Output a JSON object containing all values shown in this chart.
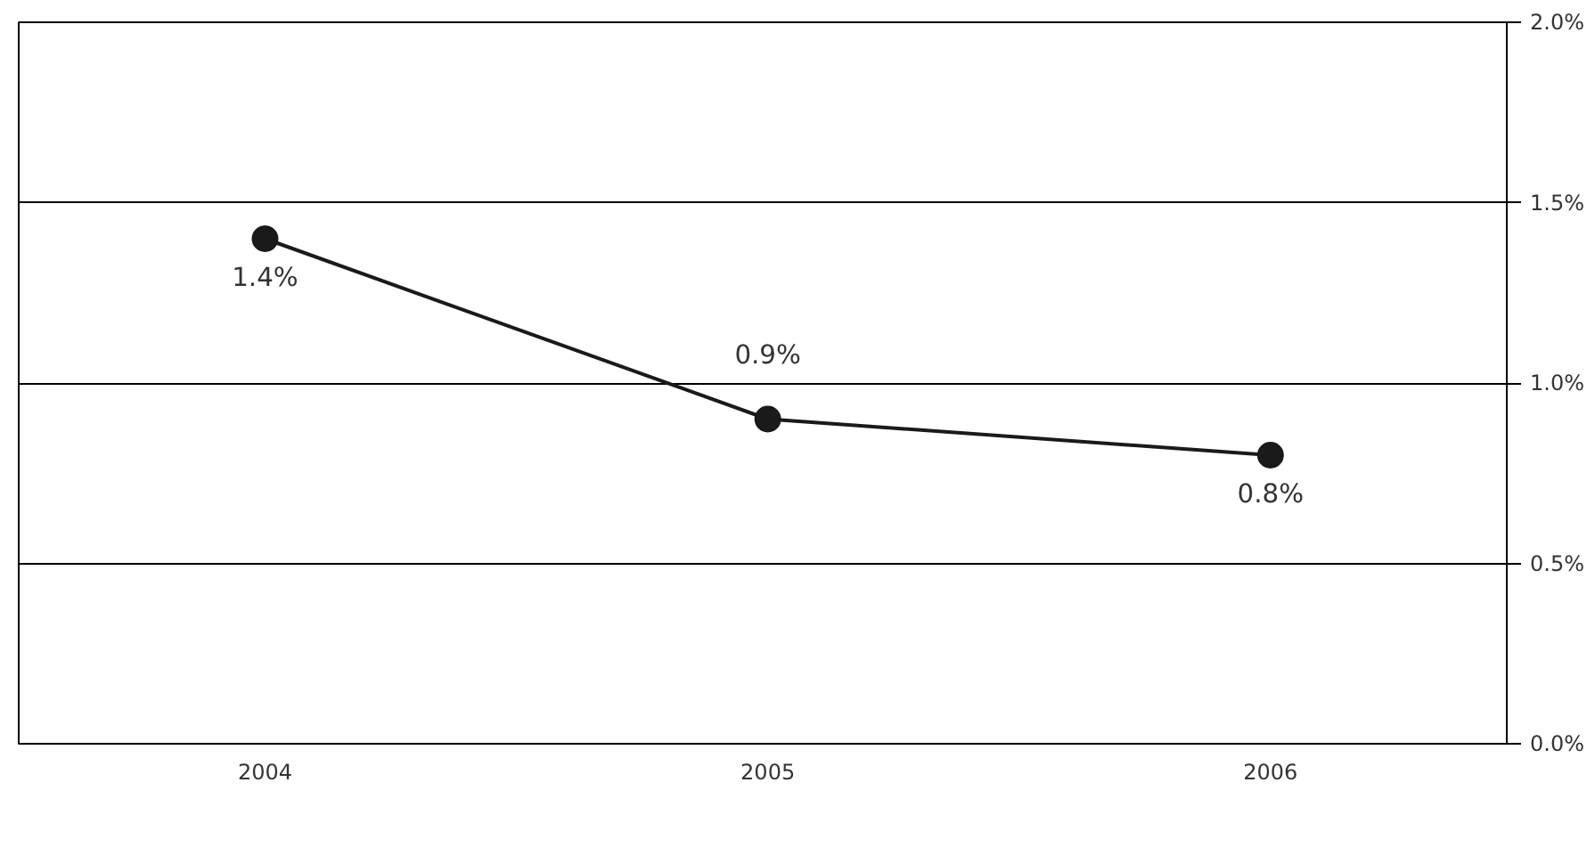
{
  "chart_data": {
    "type": "line",
    "categories": [
      "2004",
      "2005",
      "2006"
    ],
    "series": [
      {
        "color": "#1a1a1a",
        "values": [
          1.4,
          0.9,
          0.8
        ],
        "value_labels": [
          "1.4%",
          "0.9%",
          "0.8%"
        ]
      }
    ],
    "ylim": [
      0,
      2
    ],
    "yticks": [
      {
        "value": 0,
        "label": "0.0%"
      },
      {
        "value": 0.5,
        "label": "0.5%"
      },
      {
        "value": 1,
        "label": "1.0%"
      },
      {
        "value": 1.5,
        "label": "1.5%"
      },
      {
        "value": 2,
        "label": "2.0%"
      }
    ],
    "grid": "y",
    "marker": "circle",
    "line_style": "solid"
  }
}
